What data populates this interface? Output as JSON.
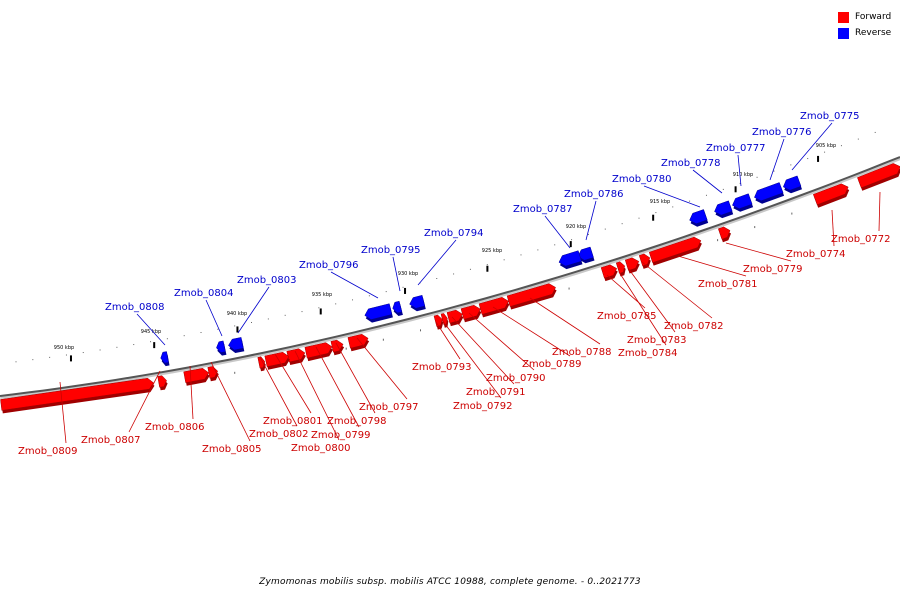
{
  "legend": {
    "forward": {
      "label": "Forward",
      "color": "#ff0000"
    },
    "reverse": {
      "label": "Reverse",
      "color": "#0000ff"
    }
  },
  "caption": "Zymomonas mobilis subsp. mobilis ATCC 10988, complete genome. - 0..2021773",
  "scale": {
    "unit": "kbp",
    "major_ticks": [
      "905 kbp",
      "910 kbp",
      "915 kbp",
      "920 kbp",
      "925 kbp",
      "930 kbp",
      "935 kbp",
      "940 kbp",
      "945 kbp",
      "950 kbp"
    ]
  },
  "genes": [
    {
      "name": "Zmob_0772",
      "strand": "forward"
    },
    {
      "name": "Zmob_0774",
      "strand": "forward"
    },
    {
      "name": "Zmob_0775",
      "strand": "reverse"
    },
    {
      "name": "Zmob_0776",
      "strand": "reverse"
    },
    {
      "name": "Zmob_0777",
      "strand": "reverse"
    },
    {
      "name": "Zmob_0778",
      "strand": "reverse"
    },
    {
      "name": "Zmob_0779",
      "strand": "forward"
    },
    {
      "name": "Zmob_0780",
      "strand": "reverse"
    },
    {
      "name": "Zmob_0781",
      "strand": "forward"
    },
    {
      "name": "Zmob_0782",
      "strand": "forward"
    },
    {
      "name": "Zmob_0783",
      "strand": "forward"
    },
    {
      "name": "Zmob_0784",
      "strand": "forward"
    },
    {
      "name": "Zmob_0785",
      "strand": "forward"
    },
    {
      "name": "Zmob_0786",
      "strand": "reverse"
    },
    {
      "name": "Zmob_0787",
      "strand": "reverse"
    },
    {
      "name": "Zmob_0788",
      "strand": "forward"
    },
    {
      "name": "Zmob_0789",
      "strand": "forward"
    },
    {
      "name": "Zmob_0790",
      "strand": "forward"
    },
    {
      "name": "Zmob_0791",
      "strand": "forward"
    },
    {
      "name": "Zmob_0792",
      "strand": "forward"
    },
    {
      "name": "Zmob_0793",
      "strand": "forward"
    },
    {
      "name": "Zmob_0794",
      "strand": "reverse"
    },
    {
      "name": "Zmob_0795",
      "strand": "reverse"
    },
    {
      "name": "Zmob_0796",
      "strand": "reverse"
    },
    {
      "name": "Zmob_0797",
      "strand": "forward"
    },
    {
      "name": "Zmob_0798",
      "strand": "forward"
    },
    {
      "name": "Zmob_0799",
      "strand": "forward"
    },
    {
      "name": "Zmob_0800",
      "strand": "forward"
    },
    {
      "name": "Zmob_0801",
      "strand": "forward"
    },
    {
      "name": "Zmob_0802",
      "strand": "forward"
    },
    {
      "name": "Zmob_0803",
      "strand": "reverse"
    },
    {
      "name": "Zmob_0804",
      "strand": "reverse"
    },
    {
      "name": "Zmob_0805",
      "strand": "forward"
    },
    {
      "name": "Zmob_0806",
      "strand": "forward"
    },
    {
      "name": "Zmob_0807",
      "strand": "forward"
    },
    {
      "name": "Zmob_0808",
      "strand": "reverse"
    },
    {
      "name": "Zmob_0809",
      "strand": "forward"
    }
  ]
}
